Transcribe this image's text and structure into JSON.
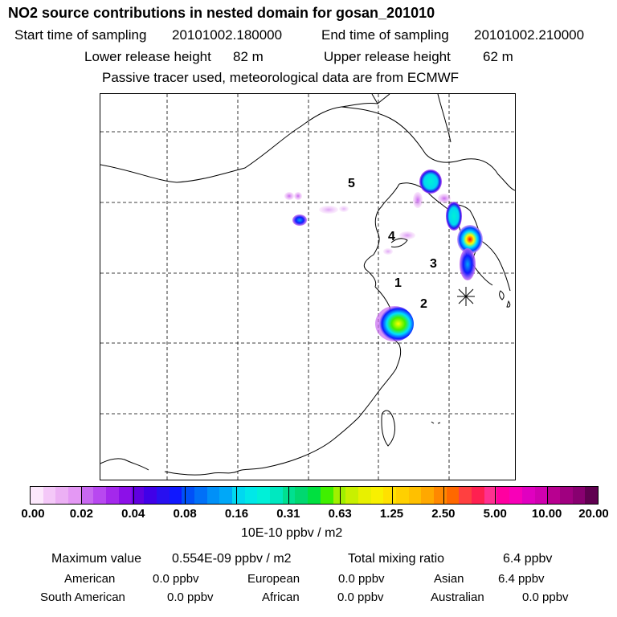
{
  "title": "NO2 source contributions in nested domain for gosan_201010",
  "header": {
    "start_label": "Start time of sampling",
    "start_value": "20101002.180000",
    "end_label": "End time of sampling",
    "end_value": "20101002.210000",
    "lower_label": "Lower release height",
    "lower_value": "82 m",
    "upper_label": "Upper release height",
    "upper_value": "62 m",
    "note": "Passive tracer used, meteorological data are from ECMWF"
  },
  "map": {
    "region_labels": [
      "1",
      "2",
      "3",
      "4",
      "5"
    ],
    "receptor_marker": "asterisk-icon",
    "plume_colors": [
      "#d890f8",
      "#0040ff",
      "#00c0c0",
      "#00e0ff",
      "#ffff00",
      "#ff0000"
    ]
  },
  "colorbar": {
    "colors": [
      "#fce8fc",
      "#f4c8f8",
      "#ecb0f4",
      "#e498f4",
      "#c868f0",
      "#b848f0",
      "#a428ec",
      "#8c10e8",
      "#6000e0",
      "#4000e8",
      "#2810f0",
      "#1018ff",
      "#0050f8",
      "#0070f8",
      "#0090f8",
      "#00a8f8",
      "#00d8f0",
      "#00e8e8",
      "#00f0d8",
      "#00e8c0",
      "#00e090",
      "#00d870",
      "#00e040",
      "#40f000",
      "#a0f000",
      "#c8f000",
      "#e8f000",
      "#f8f000",
      "#ffe000",
      "#ffd000",
      "#ffc000",
      "#ffa800",
      "#ff8800",
      "#ff6800",
      "#ff4040",
      "#ff2050",
      "#ff3090",
      "#ff00a0",
      "#f800b8",
      "#e000c0",
      "#d000b0",
      "#b80090",
      "#a00080",
      "#880070",
      "#600050"
    ],
    "tick_labels": [
      "0.00",
      "0.02",
      "0.04",
      "0.08",
      "0.16",
      "0.31",
      "0.63",
      "1.25",
      "2.50",
      "5.00",
      "10.00",
      "20.00"
    ],
    "units": "10E-10 ppbv / m2"
  },
  "footer": {
    "max_label": "Maximum value",
    "max_value": "0.554E-09 ppbv / m2",
    "total_label": "Total mixing ratio",
    "total_value": "6.4 ppbv",
    "american_label": "American",
    "american_value": "0.0 ppbv",
    "european_label": "European",
    "european_value": "0.0 ppbv",
    "asian_label": "Asian",
    "asian_value": "6.4 ppbv",
    "south_american_label": "South American",
    "south_american_value": "0.0 ppbv",
    "african_label": "African",
    "african_value": "0.0 ppbv",
    "australian_label": "Australian",
    "australian_value": "0.0 ppbv"
  }
}
